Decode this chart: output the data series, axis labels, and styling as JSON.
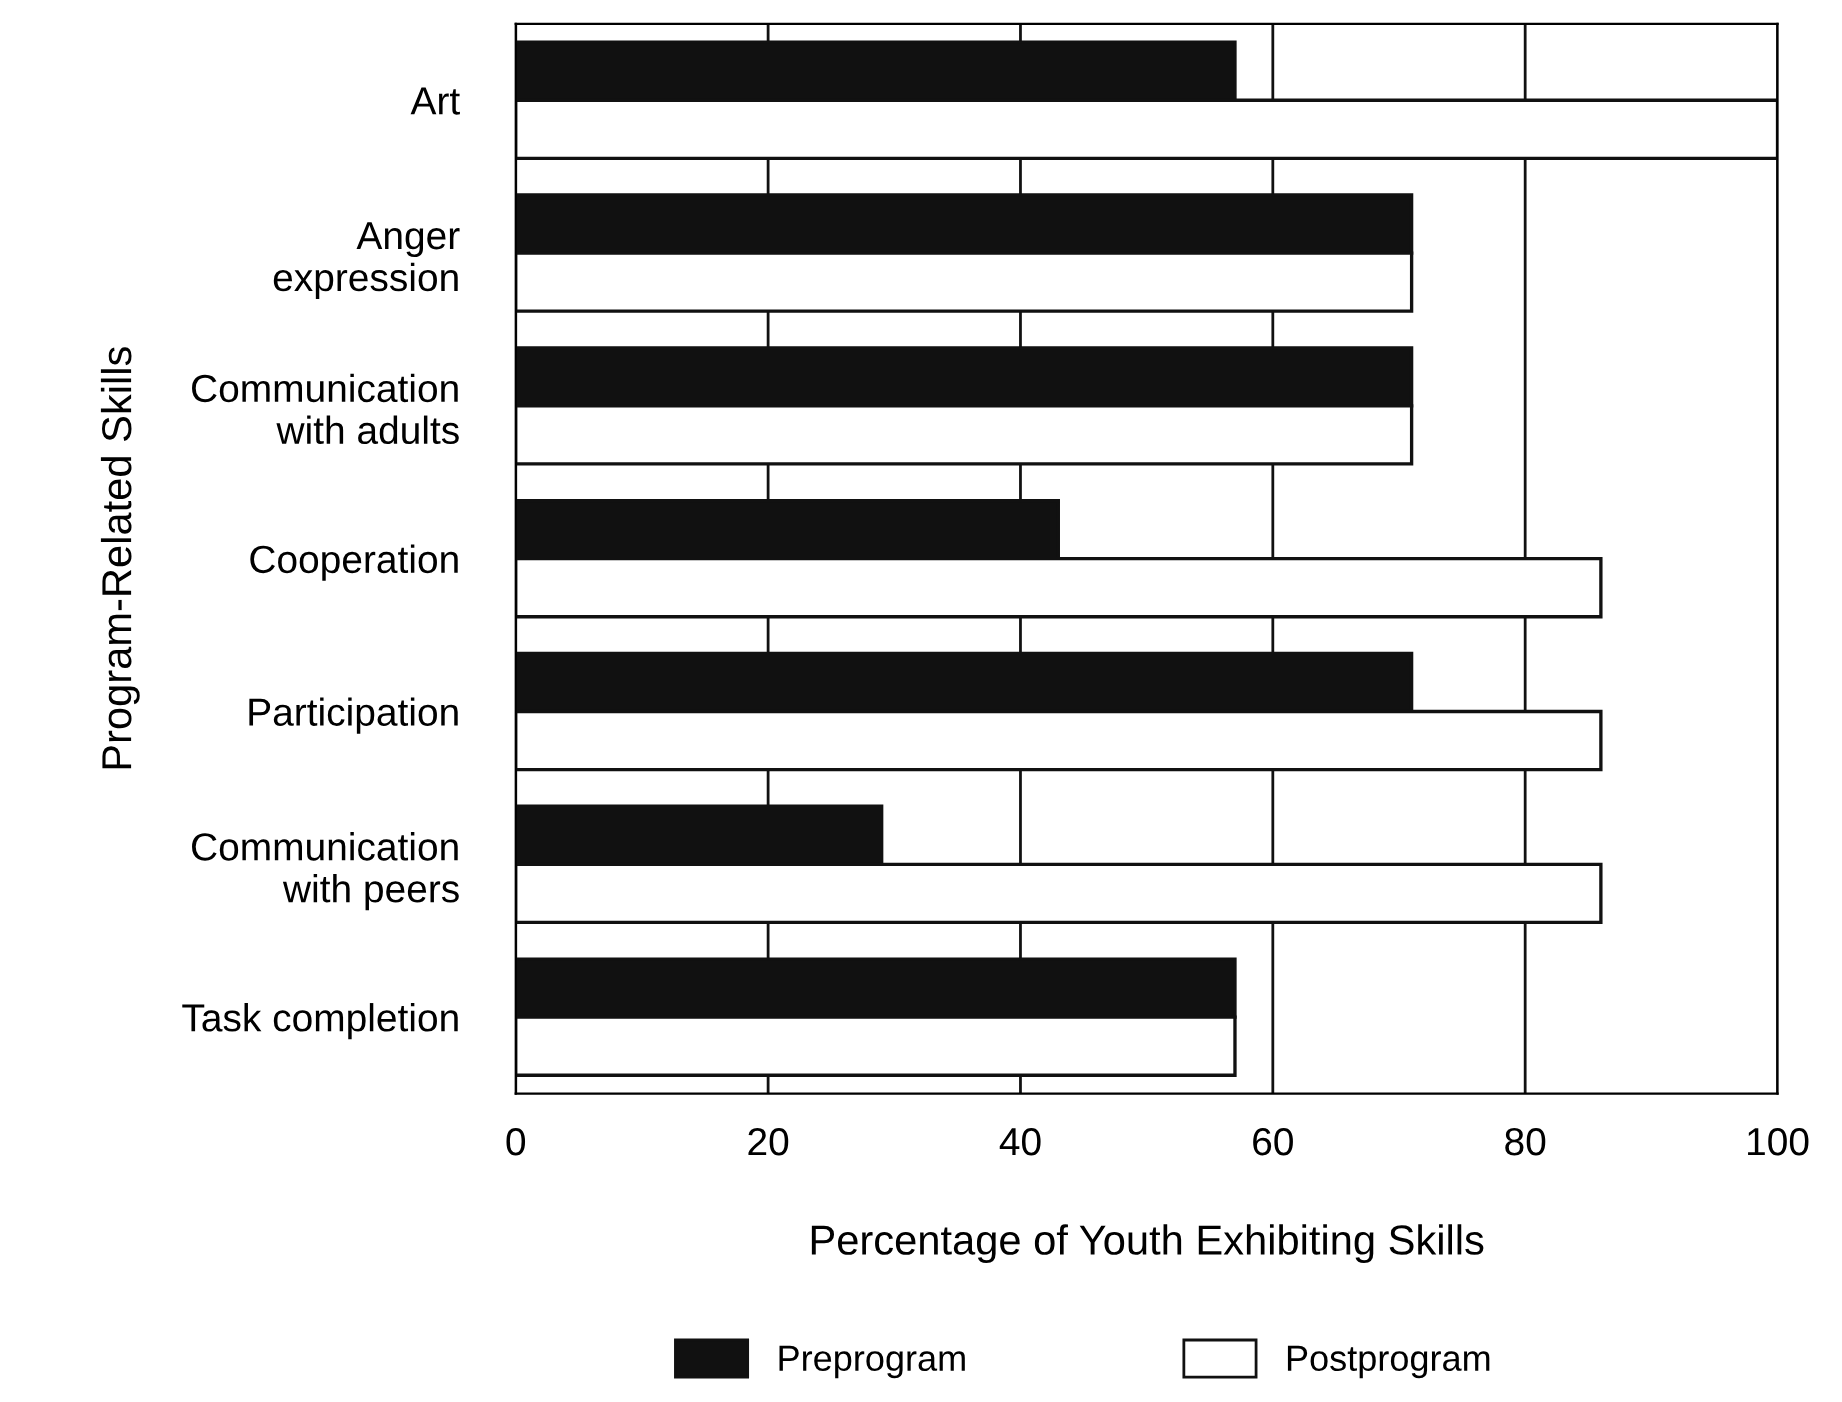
{
  "chart_data": {
    "type": "bar",
    "orientation": "horizontal",
    "xlabel": "Percentage of Youth Exhibiting Skills",
    "ylabel": "Program-Related Skills",
    "categories": [
      "Art",
      "Anger\nexpression",
      "Communication\nwith adults",
      "Cooperation",
      "Participation",
      "Communication\nwith peers",
      "Task completion"
    ],
    "series": [
      {
        "name": "Preprogram",
        "color": "#111111",
        "values": [
          57,
          71,
          71,
          43,
          71,
          29,
          57
        ]
      },
      {
        "name": "Postprogram",
        "color": "#ffffff",
        "values": [
          100,
          71,
          71,
          86,
          86,
          86,
          57
        ]
      }
    ],
    "xlim": [
      0,
      100
    ],
    "xticks": [
      0,
      20,
      40,
      60,
      80,
      100
    ],
    "grid": "x",
    "legend": "bottom"
  }
}
